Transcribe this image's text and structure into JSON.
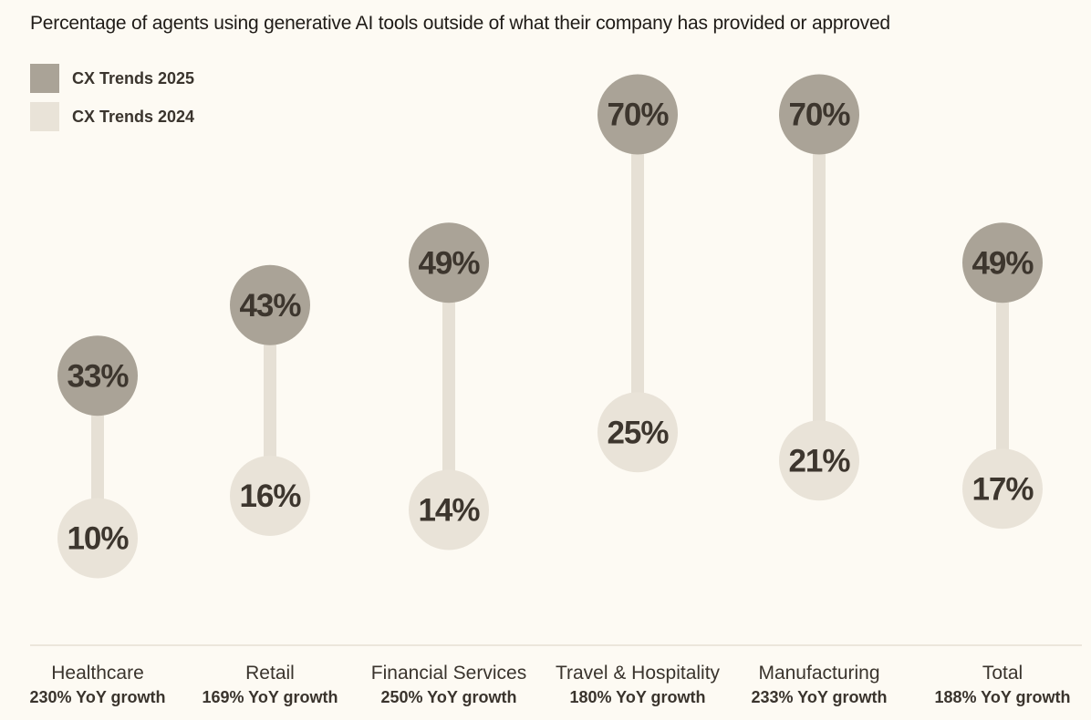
{
  "chart_data": {
    "type": "dumbbell",
    "title": "Percentage of agents using generative AI tools outside of what their company has provided or approved",
    "legend": [
      {
        "name": "CX Trends 2025",
        "color": "#aaa397"
      },
      {
        "name": "CX Trends 2024",
        "color": "#e9e3d8"
      }
    ],
    "colors": {
      "connector": "#e6e0d5",
      "baseline": "#ece6db",
      "text": "#3d362e"
    },
    "ylim": [
      0,
      100
    ],
    "categories": [
      {
        "label": "Healthcare",
        "growth": "230% YoY growth",
        "v2025": 33,
        "v2024": 10,
        "label2025": "33%",
        "label2024": "10%"
      },
      {
        "label": "Retail",
        "growth": "169% YoY growth",
        "v2025": 43,
        "v2024": 16,
        "label2025": "43%",
        "label2024": "16%"
      },
      {
        "label": "Financial Services",
        "growth": "250% YoY growth",
        "v2025": 49,
        "v2024": 14,
        "label2025": "49%",
        "label2024": "14%"
      },
      {
        "label": "Travel & Hospitality",
        "growth": "180% YoY growth",
        "v2025": 70,
        "v2024": 25,
        "label2025": "70%",
        "label2024": "25%"
      },
      {
        "label": "Manufacturing",
        "growth": "233% YoY growth",
        "v2025": 70,
        "v2024": 21,
        "label2025": "70%",
        "label2024": "21%"
      },
      {
        "label": "Total",
        "growth": "188% YoY growth",
        "v2025": 49,
        "v2024": 17,
        "label2025": "49%",
        "label2024": "17%"
      }
    ]
  }
}
